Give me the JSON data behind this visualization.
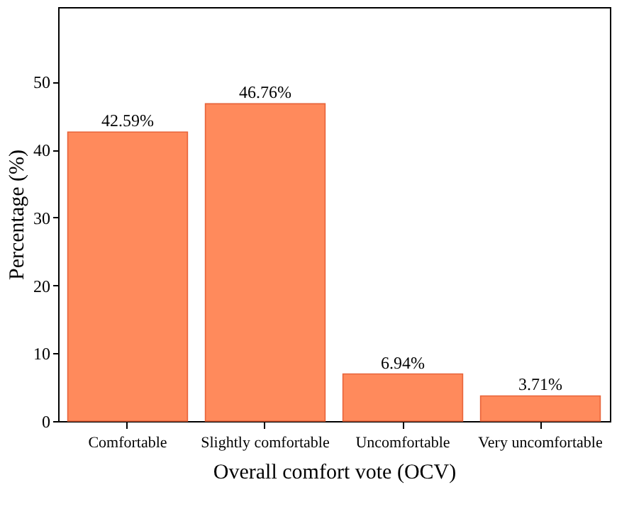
{
  "chart_data": {
    "type": "bar",
    "xlabel": "Overall comfort vote (OCV)",
    "ylabel": "Percentage (%)",
    "categories": [
      "Comfortable",
      "Slightly comfortable",
      "Uncomfortable",
      "Very uncomfortable"
    ],
    "values": [
      42.59,
      46.76,
      6.94,
      3.71
    ],
    "value_labels": [
      "42.59%",
      "46.76%",
      "6.94%",
      "3.71%"
    ],
    "color": "#ff8a5c",
    "ylim": [
      0,
      61
    ],
    "yticks": [
      0,
      10,
      20,
      30,
      40,
      50
    ],
    "grid": false
  }
}
